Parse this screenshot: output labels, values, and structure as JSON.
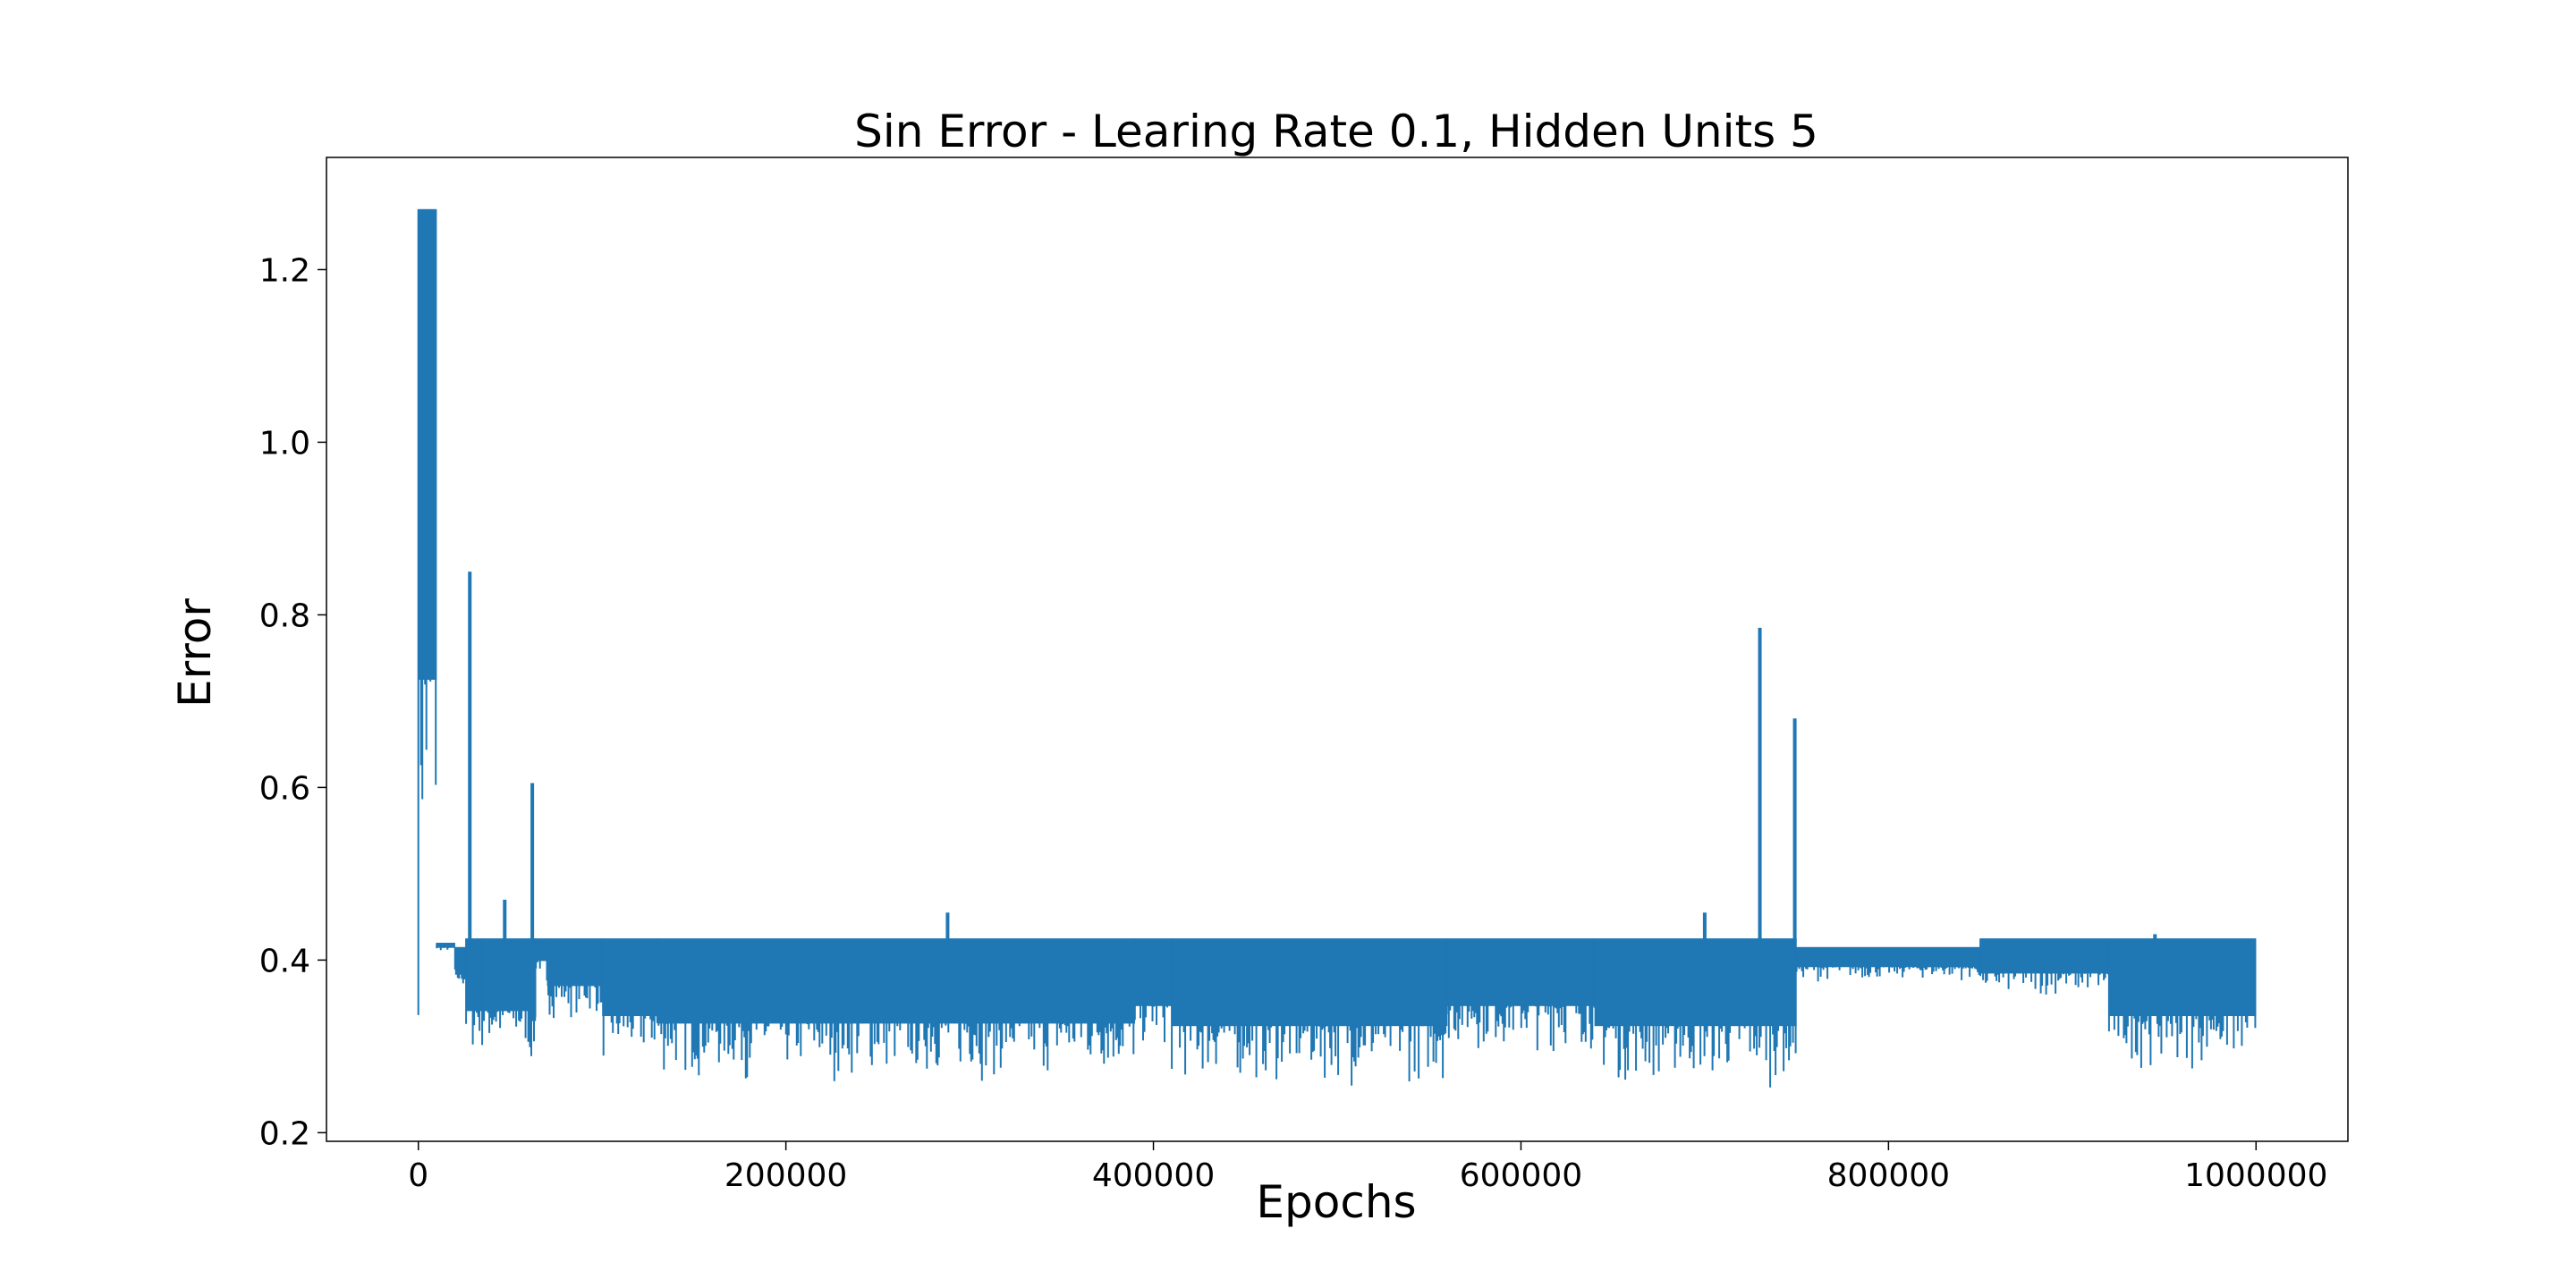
{
  "chart_data": {
    "type": "line",
    "title": "Sin Error - Learing Rate 0.1, Hidden Units 5",
    "xlabel": "Epochs",
    "ylabel": "Error",
    "xlim": [
      -50000,
      1050000
    ],
    "ylim": [
      0.19,
      1.33
    ],
    "x_ticks": [
      0,
      200000,
      400000,
      600000,
      800000,
      1000000
    ],
    "y_ticks": [
      0.2,
      0.4,
      0.6,
      0.8,
      1.0,
      1.2
    ],
    "grid": false,
    "legend": "none",
    "series_color": "#1f77b4",
    "series": [
      {
        "segments": [
          {
            "x": [
              0,
              10000
            ],
            "lo": 0.33,
            "hi": 1.27
          },
          {
            "x": [
              10000,
              20000
            ],
            "lo": 0.41,
            "hi": 0.42
          },
          {
            "x": [
              20000,
              26000
            ],
            "lo": 0.36,
            "hi": 0.415
          },
          {
            "x": [
              26000,
              35000
            ],
            "lo": 0.28,
            "hi": 0.425
          },
          {
            "x": [
              35000,
              60000
            ],
            "lo": 0.28,
            "hi": 0.425
          },
          {
            "x": [
              60000,
              64000
            ],
            "lo": 0.26,
            "hi": 0.425
          },
          {
            "x": [
              64000,
              70000
            ],
            "lo": 0.38,
            "hi": 0.425
          },
          {
            "x": [
              70000,
              100000
            ],
            "lo": 0.33,
            "hi": 0.425
          },
          {
            "x": [
              100000,
              130000
            ],
            "lo": 0.27,
            "hi": 0.425
          },
          {
            "x": [
              130000,
              390000
            ],
            "lo": 0.255,
            "hi": 0.425
          },
          {
            "x": [
              390000,
              410000
            ],
            "lo": 0.29,
            "hi": 0.425
          },
          {
            "x": [
              410000,
              560000
            ],
            "lo": 0.25,
            "hi": 0.425
          },
          {
            "x": [
              560000,
              640000
            ],
            "lo": 0.29,
            "hi": 0.425
          },
          {
            "x": [
              640000,
              750000
            ],
            "lo": 0.25,
            "hi": 0.425
          },
          {
            "x": [
              750000,
              850000
            ],
            "lo": 0.375,
            "hi": 0.415
          },
          {
            "x": [
              850000,
              920000
            ],
            "lo": 0.355,
            "hi": 0.425
          },
          {
            "x": [
              920000,
              1000000
            ],
            "lo": 0.27,
            "hi": 0.425
          }
        ],
        "spikes": [
          {
            "x": 28000,
            "y": 0.85
          },
          {
            "x": 47000,
            "y": 0.47
          },
          {
            "x": 62000,
            "y": 0.605
          },
          {
            "x": 288000,
            "y": 0.455
          },
          {
            "x": 700000,
            "y": 0.455
          },
          {
            "x": 730000,
            "y": 0.785
          },
          {
            "x": 749000,
            "y": 0.68
          },
          {
            "x": 945000,
            "y": 0.43
          }
        ]
      }
    ]
  }
}
